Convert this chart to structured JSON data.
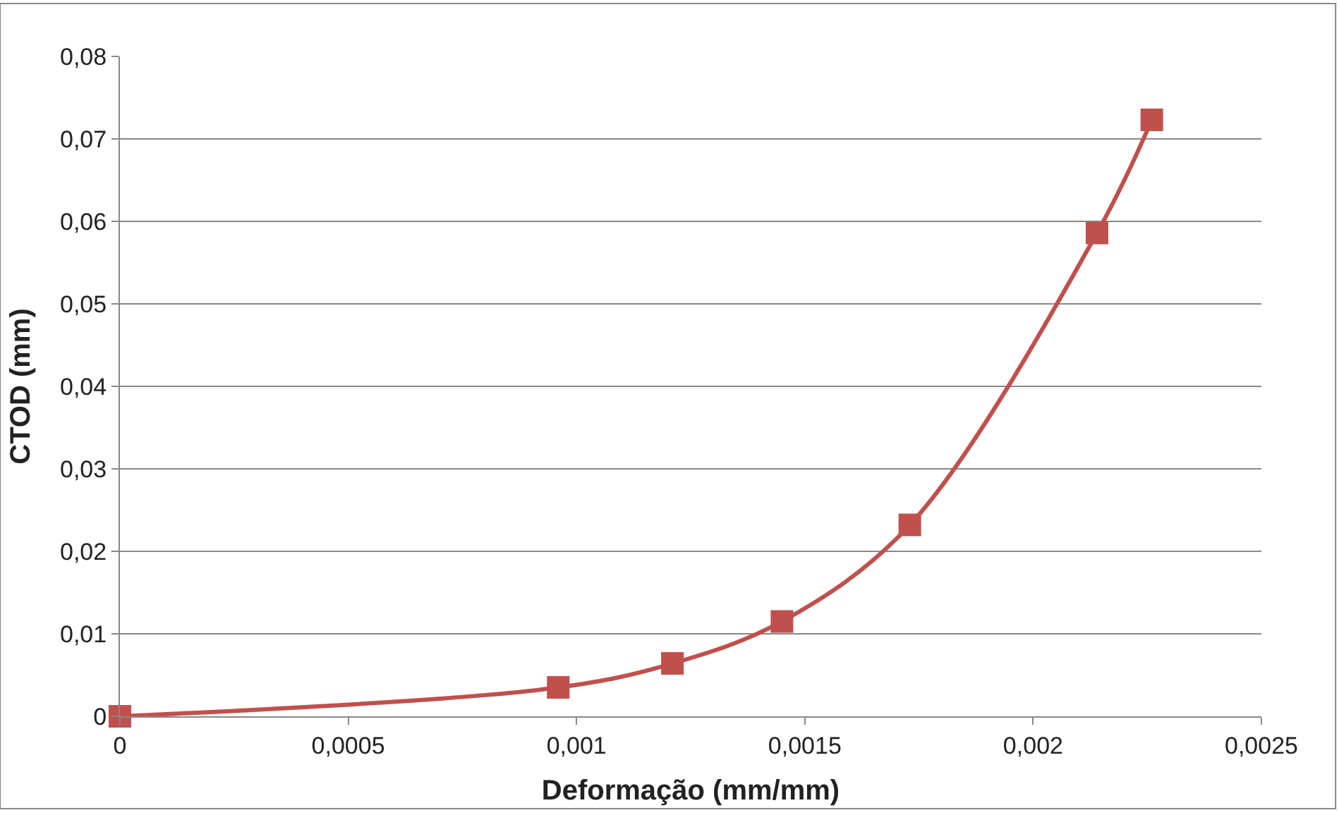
{
  "chart_data": {
    "type": "line",
    "xlabel": "Deformação (mm/mm)",
    "ylabel": "CTOD (mm)",
    "x": [
      0,
      0.00096,
      0.00121,
      0.00145,
      0.00173,
      0.00214,
      0.00226
    ],
    "series": [
      {
        "color": "#c0504d",
        "values": [
          0,
          0.0035,
          0.0064,
          0.0115,
          0.0232,
          0.0586,
          0.0723
        ]
      }
    ],
    "xlim": [
      0,
      0.0025
    ],
    "xticks": [
      0,
      {
        "value": 0.0005,
        "label": "0,0005"
      },
      {
        "value": 0.001,
        "label": "0,001"
      },
      {
        "value": 0.0015,
        "label": "0,0015"
      },
      {
        "value": 0.002,
        "label": "0,002"
      },
      {
        "value": 0.0025,
        "label": "0,0025"
      }
    ],
    "ylim": [
      0,
      0.08
    ],
    "yticks": [
      0,
      {
        "value": 0.01,
        "label": "0,01"
      },
      {
        "value": 0.02,
        "label": "0,02"
      },
      {
        "value": 0.03,
        "label": "0,03"
      },
      {
        "value": 0.04,
        "label": "0,04"
      },
      {
        "value": 0.05,
        "label": "0,05"
      },
      {
        "value": 0.06,
        "label": "0,06"
      },
      {
        "value": 0.07,
        "label": "0,07"
      },
      {
        "value": 0.08,
        "label": "0,08"
      }
    ],
    "grid": "y",
    "marker": "square"
  }
}
